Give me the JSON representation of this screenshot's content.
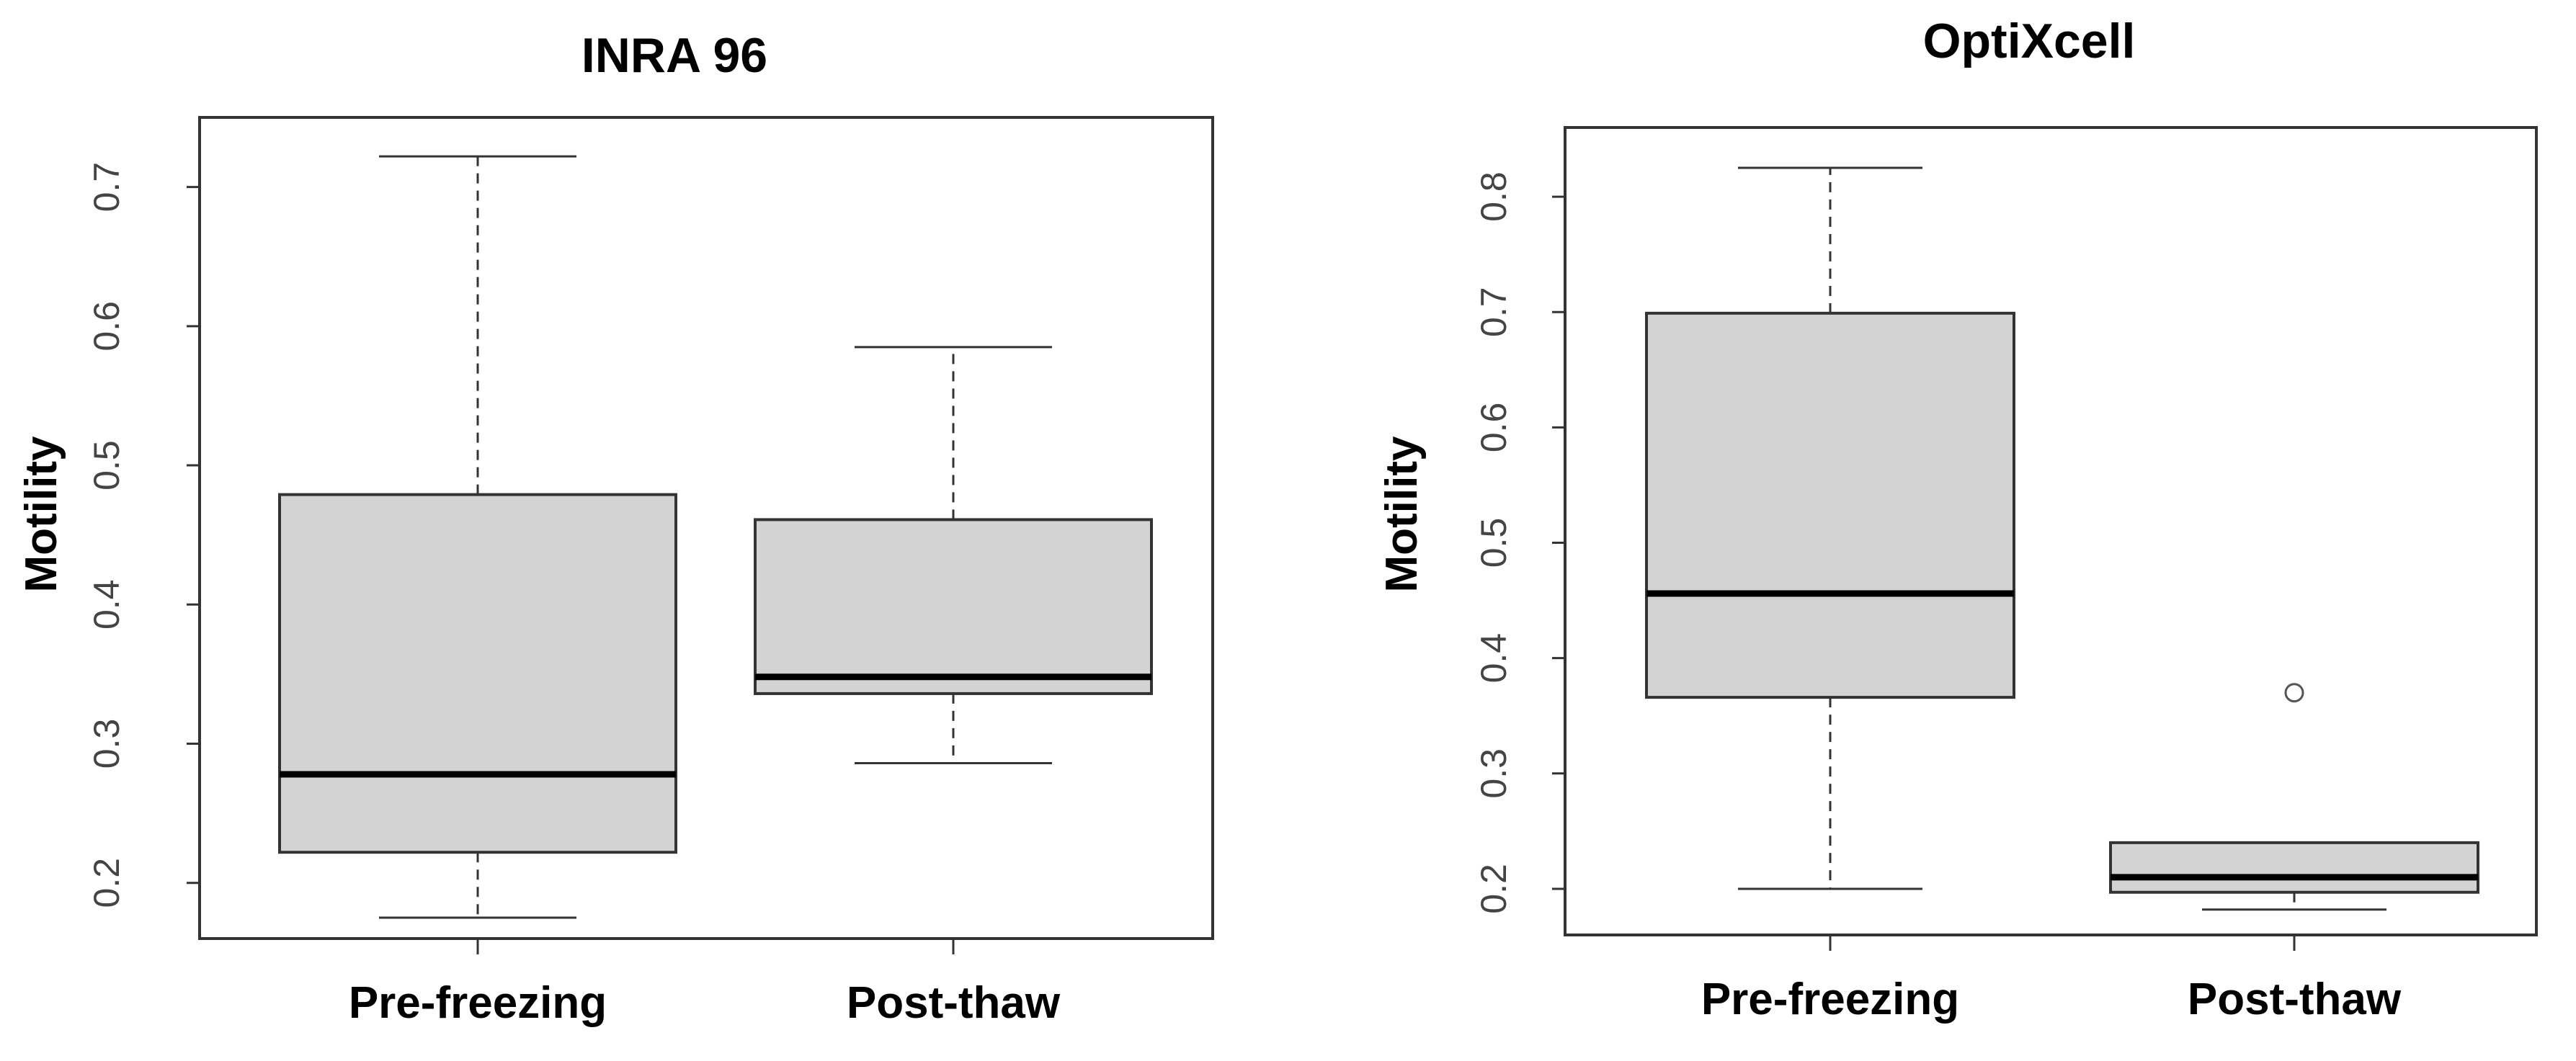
{
  "chart_data": [
    {
      "type": "box",
      "title": "INRA 96",
      "ylabel": "Motility",
      "xlabel": "",
      "categories": [
        "Pre-freezing",
        "Post-thaw"
      ],
      "yticks": [
        "0.2",
        "0.3",
        "0.4",
        "0.5",
        "0.6",
        "0.7"
      ],
      "ylim": [
        0.16,
        0.75
      ],
      "boxes": [
        {
          "category": "Pre-freezing",
          "min": 0.175,
          "q1": 0.222,
          "median": 0.278,
          "q3": 0.479,
          "max": 0.722,
          "outliers": []
        },
        {
          "category": "Post-thaw",
          "min": 0.286,
          "q1": 0.336,
          "median": 0.348,
          "q3": 0.461,
          "max": 0.585,
          "outliers": []
        }
      ],
      "box_fill": "#d3d3d3",
      "grid": false
    },
    {
      "type": "box",
      "title": "OptiXcell",
      "ylabel": "Motility",
      "xlabel": "",
      "categories": [
        "Pre-freezing",
        "Post-thaw"
      ],
      "yticks": [
        "0.2",
        "0.3",
        "0.4",
        "0.5",
        "0.6",
        "0.7",
        "0.8"
      ],
      "ylim": [
        0.16,
        0.86
      ],
      "boxes": [
        {
          "category": "Pre-freezing",
          "min": 0.2,
          "q1": 0.366,
          "median": 0.456,
          "q3": 0.699,
          "max": 0.825,
          "outliers": []
        },
        {
          "category": "Post-thaw",
          "min": 0.182,
          "q1": 0.197,
          "median": 0.21,
          "q3": 0.24,
          "max": 0.24,
          "outliers": [
            0.37
          ]
        }
      ],
      "box_fill": "#d3d3d3",
      "grid": false
    }
  ]
}
